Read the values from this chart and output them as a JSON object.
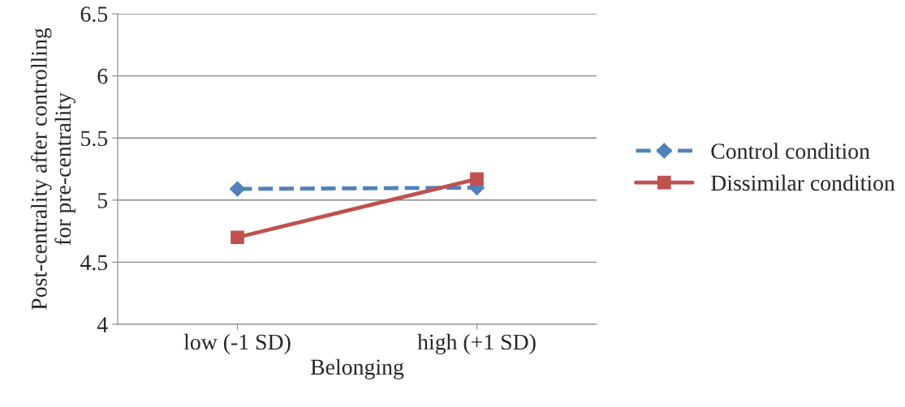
{
  "chart_data": {
    "type": "line",
    "xlabel": "Belonging",
    "ylabel": "Post-centrality after controlling\nfor pre-centrality",
    "categories": [
      "low (-1 SD)",
      "high (+1 SD)"
    ],
    "series": [
      {
        "name": "Control condition",
        "color": "#4f81bd",
        "values": [
          5.09,
          5.1
        ],
        "marker": "diamond",
        "line_style": "dashed"
      },
      {
        "name": "Dissimilar condition",
        "color": "#c0504d",
        "values": [
          4.7,
          5.17
        ],
        "marker": "square",
        "line_style": "solid"
      }
    ],
    "ylim": [
      4,
      6.5
    ],
    "yticks": [
      4,
      4.5,
      5,
      5.5,
      6,
      6.5
    ],
    "grid": "y",
    "legend": "right"
  }
}
